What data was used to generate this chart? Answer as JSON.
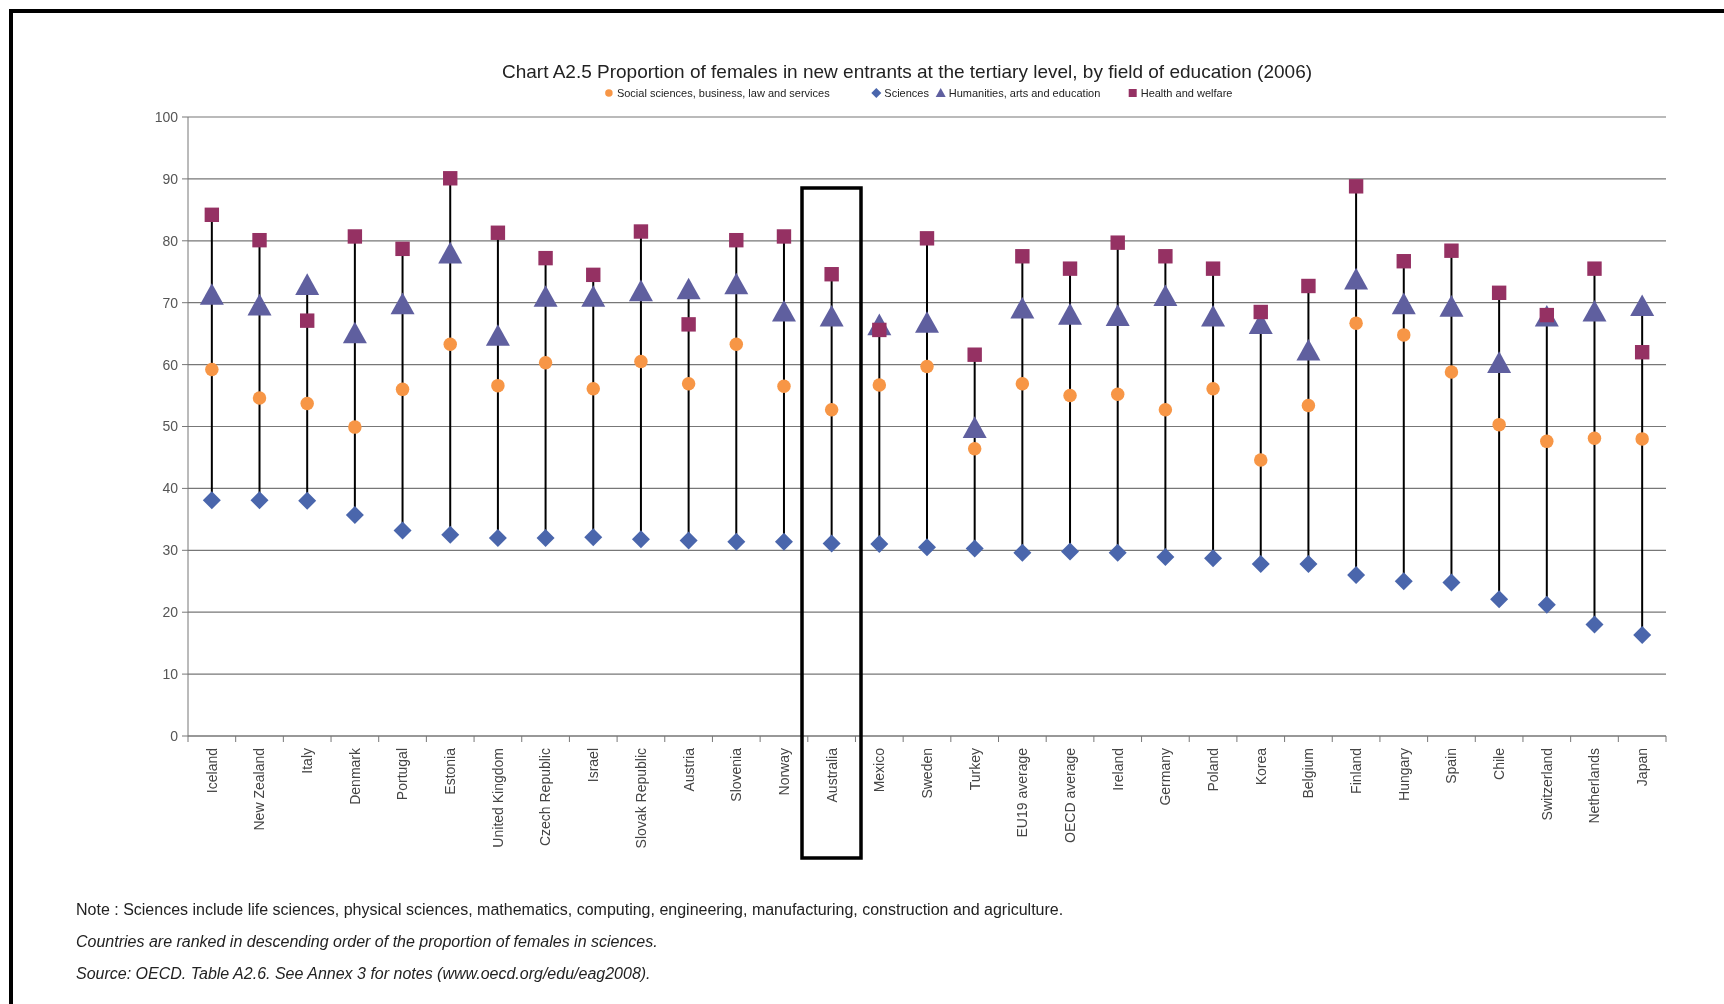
{
  "chart_data": {
    "type": "scatter",
    "title": "Chart A2.5 Proportion of females in new entrants at the tertiary level, by field of education (2006)",
    "categories": [
      "Iceland",
      "New Zealand",
      "Italy",
      "Denmark",
      "Portugal",
      "Estonia",
      "United Kingdom",
      "Czech Republic",
      "Israel",
      "Slovak Republic",
      "Austria",
      "Slovenia",
      "Norway",
      "Australia",
      "Mexico",
      "Sweden",
      "Turkey",
      "EU19 average",
      "OECD average",
      "Ireland",
      "Germany",
      "Poland",
      "Korea",
      "Belgium",
      "Finland",
      "Hungary",
      "Spain",
      "Chile",
      "Switzerland",
      "Netherlands",
      "Japan"
    ],
    "series": [
      {
        "name": "Social sciences, business, law and services",
        "color": "#f79646",
        "marker": "circle",
        "values": [
          59.2,
          54.6,
          53.7,
          49.9,
          56.0,
          63.3,
          56.6,
          60.3,
          56.1,
          60.5,
          56.9,
          63.3,
          56.5,
          52.7,
          56.7,
          59.7,
          46.4,
          56.9,
          55.0,
          55.2,
          52.7,
          56.1,
          44.6,
          53.4,
          66.7,
          64.8,
          58.8,
          50.3,
          47.6,
          48.1,
          48.0
        ]
      },
      {
        "name": "Sciences",
        "color": "#4a66ac",
        "marker": "diamond",
        "values": [
          38.1,
          38.1,
          38.0,
          35.7,
          33.2,
          32.5,
          32.0,
          32.0,
          32.1,
          31.8,
          31.6,
          31.4,
          31.4,
          31.1,
          31.0,
          30.5,
          30.3,
          29.6,
          29.8,
          29.6,
          28.9,
          28.7,
          27.8,
          27.8,
          26.0,
          25.0,
          24.8,
          22.1,
          21.2,
          18.0,
          16.3
        ]
      },
      {
        "name": "Humanities, arts and education",
        "color": "#5f5f9f",
        "marker": "triangle",
        "values": [
          71.2,
          69.5,
          72.8,
          65.0,
          69.7,
          77.9,
          64.6,
          70.9,
          70.9,
          71.8,
          72.1,
          72.9,
          68.5,
          67.7,
          66.3,
          66.7,
          49.7,
          69.0,
          68.0,
          67.8,
          71.0,
          67.7,
          66.5,
          62.2,
          73.7,
          69.7,
          69.3,
          60.2,
          67.7,
          68.5,
          69.4
        ]
      },
      {
        "name": "Health and welfare",
        "color": "#953163",
        "marker": "square",
        "values": [
          84.2,
          80.1,
          67.1,
          80.7,
          78.7,
          90.1,
          81.3,
          77.2,
          74.5,
          81.5,
          66.5,
          80.1,
          80.7,
          74.6,
          65.6,
          80.4,
          61.6,
          77.5,
          75.5,
          79.7,
          77.5,
          75.5,
          68.5,
          72.7,
          88.8,
          76.7,
          78.4,
          71.6,
          68.0,
          75.5,
          62.0
        ]
      }
    ],
    "ylim": [
      0,
      100
    ],
    "yticks": [
      0,
      10,
      20,
      30,
      40,
      50,
      60,
      70,
      80,
      90,
      100
    ],
    "grid": "y",
    "legend": "top",
    "annotations": [
      "Note : Sciences include life sciences, physical sciences, mathematics, computing, engineering, manufacturing, construction and agriculture.",
      "Countries are ranked in descending order of the proportion of females in sciences.",
      "Source: OECD. Table A2.6. See Annex 3 for notes (www.oecd.org/edu/eag2008)."
    ]
  }
}
